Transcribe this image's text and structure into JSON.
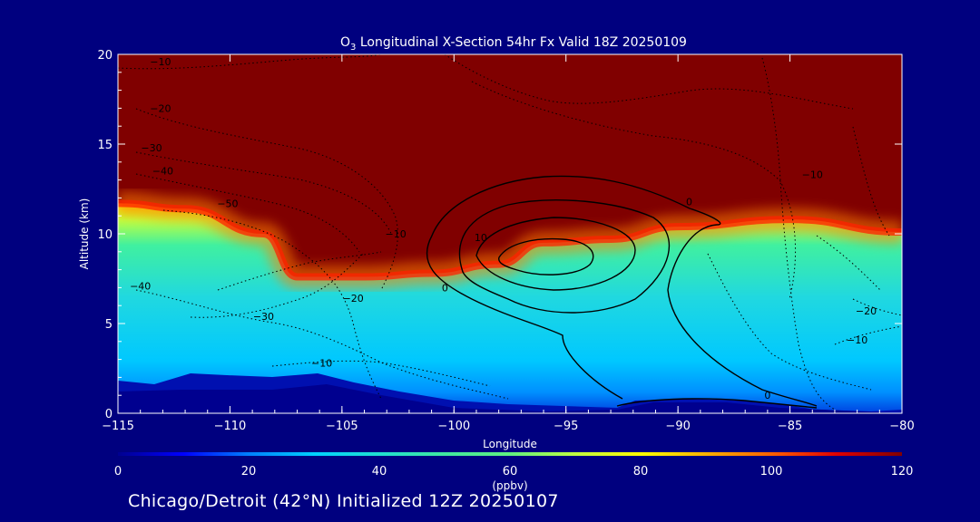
{
  "chart_data": {
    "type": "heatmap",
    "title_prefix": "O",
    "title_sub": "3",
    "title_rest": " Longitudinal X-Section 54hr  Fx Valid 18Z 20250109",
    "xlabel": "Longitude",
    "ylabel": "Altitude (km)",
    "xlim": [
      -115,
      -80
    ],
    "ylim": [
      0,
      20
    ],
    "x_ticks": [
      -115,
      -110,
      -105,
      -100,
      -95,
      -90,
      -85,
      -80
    ],
    "x_tick_labels": [
      "−115",
      "−110",
      "−105",
      "−100",
      "−95",
      "−90",
      "−85",
      "−80"
    ],
    "y_ticks": [
      0,
      5,
      10,
      15,
      20
    ],
    "y_tick_labels": [
      "0",
      "5",
      "10",
      "15",
      "20"
    ],
    "colorbar": {
      "range": [
        0,
        120
      ],
      "ticks": [
        0,
        20,
        40,
        60,
        80,
        100,
        120
      ],
      "tick_labels": [
        "0",
        "20",
        "40",
        "60",
        "80",
        "100",
        "120"
      ],
      "unit_label": "(ppbv)",
      "colors": [
        "#00008f",
        "#0000ff",
        "#0080ff",
        "#00d0ff",
        "#20e0d0",
        "#40e8a0",
        "#60f080",
        "#c0ff40",
        "#ffff00",
        "#ffb000",
        "#ff6000",
        "#e00000",
        "#800000"
      ]
    },
    "field_description_levels": {
      "tropopause_height_km": [
        {
          "lon": -115,
          "alt": 11.7
        },
        {
          "lon": -112,
          "alt": 11.4
        },
        {
          "lon": -108.5,
          "alt": 10.0
        },
        {
          "lon": -107,
          "alt": 7.6
        },
        {
          "lon": -104,
          "alt": 7.6
        },
        {
          "lon": -101,
          "alt": 7.8
        },
        {
          "lon": -98,
          "alt": 8.3
        },
        {
          "lon": -96,
          "alt": 9.5
        },
        {
          "lon": -93,
          "alt": 9.7
        },
        {
          "lon": -90,
          "alt": 10.4
        },
        {
          "lon": -85,
          "alt": 10.8
        },
        {
          "lon": -80,
          "alt": 10.1
        }
      ]
    },
    "contour_labels": [
      {
        "text": "−10",
        "lon": -113.1,
        "alt": 19.4
      },
      {
        "text": "−20",
        "lon": -113.1,
        "alt": 16.8
      },
      {
        "text": "−30",
        "lon": -113.5,
        "alt": 14.6
      },
      {
        "text": "−40",
        "lon": -113.0,
        "alt": 13.3
      },
      {
        "text": "−50",
        "lon": -110.1,
        "alt": 11.5
      },
      {
        "text": "−40",
        "lon": -114.0,
        "alt": 6.9
      },
      {
        "text": "−30",
        "lon": -108.5,
        "alt": 5.2
      },
      {
        "text": "−20",
        "lon": -104.5,
        "alt": 6.2
      },
      {
        "text": "−10",
        "lon": -105.9,
        "alt": 2.6
      },
      {
        "text": "−10",
        "lon": -102.6,
        "alt": 9.8
      },
      {
        "text": "0",
        "lon": -100.4,
        "alt": 6.8
      },
      {
        "text": "10",
        "lon": -98.8,
        "alt": 9.6
      },
      {
        "text": "0",
        "lon": -89.5,
        "alt": 11.6
      },
      {
        "text": "−10",
        "lon": -84.0,
        "alt": 13.1
      },
      {
        "text": "−20",
        "lon": -81.6,
        "alt": 5.5
      },
      {
        "text": "−10",
        "lon": -82.0,
        "alt": 3.9
      },
      {
        "text": "0",
        "lon": -86.0,
        "alt": 0.8
      }
    ]
  },
  "footer": {
    "text": "Chicago/Detroit (42°N) Initialized 12Z 20250107"
  }
}
